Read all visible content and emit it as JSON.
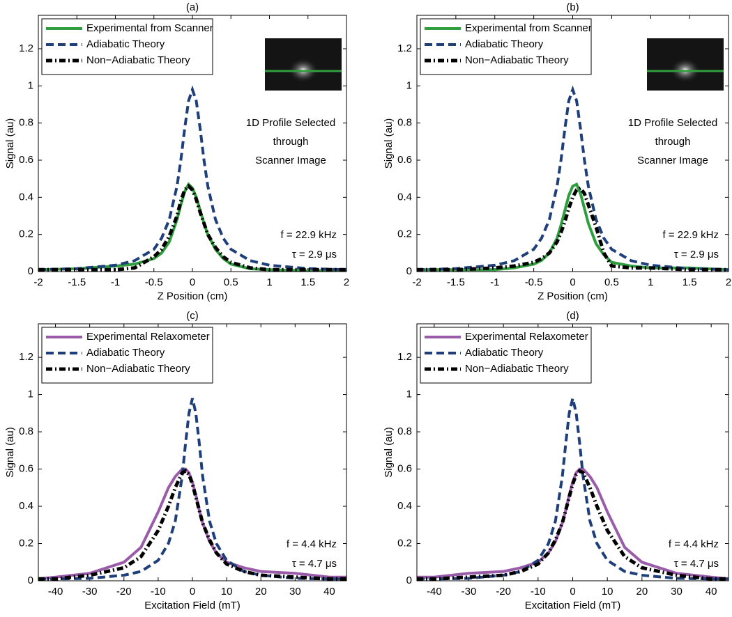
{
  "chart_data": [
    {
      "type": "line",
      "title": "(a)",
      "xlabel": "Z Position (cm)",
      "ylabel": "Signal (au)",
      "x": [
        -2,
        -1.5,
        -1,
        -0.75,
        -0.5,
        -0.4,
        -0.3,
        -0.2,
        -0.15,
        -0.1,
        -0.05,
        0,
        0.05,
        0.1,
        0.15,
        0.2,
        0.3,
        0.4,
        0.5,
        0.75,
        1,
        1.5,
        2
      ],
      "xlim": [
        -2,
        2
      ],
      "xticks": [
        -2,
        -1.5,
        -1,
        -0.5,
        0,
        0.5,
        1,
        1.5,
        2
      ],
      "ylim": [
        0,
        1.38
      ],
      "yticks": [
        0,
        0.2,
        0.4,
        0.6,
        0.8,
        1,
        1.2
      ],
      "legend": "upper left",
      "inset_image": true,
      "annotations": [
        "f = 22.9 kHz",
        "τ = 2.9 μs"
      ],
      "inset_caption": [
        "1D Profile Selected",
        "through",
        "Scanner Image"
      ],
      "series": [
        {
          "name": "Experimental from Scanner",
          "color": "#2e9e3e",
          "style": "solid",
          "values": [
            0.01,
            0.015,
            0.03,
            0.04,
            0.07,
            0.1,
            0.16,
            0.28,
            0.36,
            0.43,
            0.47,
            0.45,
            0.4,
            0.33,
            0.26,
            0.2,
            0.12,
            0.07,
            0.04,
            0.015,
            0.01,
            0.005,
            0.005
          ]
        },
        {
          "name": "Adiabatic Theory",
          "color": "#1f3f7a",
          "style": "dashed",
          "values": [
            0.01,
            0.016,
            0.034,
            0.059,
            0.12,
            0.18,
            0.28,
            0.46,
            0.6,
            0.77,
            0.92,
            0.98,
            0.92,
            0.77,
            0.6,
            0.46,
            0.28,
            0.18,
            0.12,
            0.059,
            0.034,
            0.016,
            0.01
          ]
        },
        {
          "name": "Non−Adiabatic Theory",
          "color": "#000000",
          "style": "dashdot",
          "values": [
            0.01,
            0.01,
            0.01,
            0.02,
            0.08,
            0.12,
            0.19,
            0.3,
            0.38,
            0.44,
            0.46,
            0.44,
            0.39,
            0.32,
            0.26,
            0.2,
            0.13,
            0.08,
            0.05,
            0.02,
            0.01,
            0.01,
            0.01
          ]
        }
      ]
    },
    {
      "type": "line",
      "title": "(b)",
      "xlabel": "Z Position (cm)",
      "ylabel": "Signal (au)",
      "x": [
        -2,
        -1.5,
        -1,
        -0.75,
        -0.5,
        -0.4,
        -0.3,
        -0.2,
        -0.15,
        -0.1,
        -0.05,
        0,
        0.05,
        0.1,
        0.15,
        0.2,
        0.3,
        0.4,
        0.5,
        0.75,
        1,
        1.5,
        2
      ],
      "xlim": [
        -2,
        2
      ],
      "xticks": [
        -2,
        -1.5,
        -1,
        -0.5,
        0,
        0.5,
        1,
        1.5,
        2
      ],
      "ylim": [
        0,
        1.38
      ],
      "yticks": [
        0,
        0.2,
        0.4,
        0.6,
        0.8,
        1,
        1.2
      ],
      "legend": "upper left",
      "inset_image": true,
      "annotations": [
        "f = 22.9 kHz",
        "τ = 2.9 μs"
      ],
      "inset_caption": [
        "1D Profile Selected",
        "through",
        "Scanner Image"
      ],
      "series": [
        {
          "name": "Experimental from Scanner",
          "color": "#2e9e3e",
          "style": "solid",
          "values": [
            0.01,
            0.01,
            0.01,
            0.02,
            0.04,
            0.06,
            0.1,
            0.18,
            0.25,
            0.33,
            0.41,
            0.46,
            0.47,
            0.42,
            0.34,
            0.26,
            0.15,
            0.09,
            0.05,
            0.03,
            0.02,
            0.02,
            0.01
          ]
        },
        {
          "name": "Adiabatic Theory",
          "color": "#1f3f7a",
          "style": "dashed",
          "values": [
            0.01,
            0.016,
            0.034,
            0.059,
            0.12,
            0.18,
            0.28,
            0.46,
            0.6,
            0.77,
            0.92,
            0.98,
            0.92,
            0.77,
            0.6,
            0.46,
            0.28,
            0.18,
            0.12,
            0.059,
            0.034,
            0.016,
            0.01
          ]
        },
        {
          "name": "Non−Adiabatic Theory",
          "color": "#000000",
          "style": "dashdot",
          "values": [
            0.01,
            0.01,
            0.02,
            0.03,
            0.05,
            0.07,
            0.1,
            0.16,
            0.21,
            0.27,
            0.34,
            0.4,
            0.44,
            0.45,
            0.42,
            0.36,
            0.24,
            0.1,
            0.03,
            0.02,
            0.02,
            0.01,
            0.01
          ]
        }
      ]
    },
    {
      "type": "line",
      "title": "(c)",
      "xlabel": "Excitation Field (mT)",
      "ylabel": "Signal (au)",
      "x": [
        -45,
        -40,
        -30,
        -20,
        -15,
        -10,
        -7,
        -5,
        -3,
        -2,
        -1,
        0,
        1,
        2,
        3,
        5,
        7,
        10,
        15,
        20,
        30,
        40,
        45
      ],
      "xlim": [
        -45,
        45
      ],
      "xticks": [
        -40,
        -30,
        -20,
        -10,
        0,
        10,
        20,
        30,
        40
      ],
      "ylim": [
        0,
        1.38
      ],
      "yticks": [
        0,
        0.2,
        0.4,
        0.6,
        0.8,
        1,
        1.2
      ],
      "legend": "upper left",
      "inset_image": false,
      "annotations": [
        "f = 4.4 kHz",
        "τ = 4.7 μs"
      ],
      "series": [
        {
          "name": "Experimental Relaxometer",
          "color": "#9a5ca8",
          "style": "solid",
          "values": [
            0.01,
            0.02,
            0.04,
            0.1,
            0.18,
            0.37,
            0.5,
            0.56,
            0.6,
            0.6,
            0.58,
            0.53,
            0.46,
            0.38,
            0.31,
            0.21,
            0.15,
            0.1,
            0.07,
            0.05,
            0.04,
            0.02,
            0.02
          ]
        },
        {
          "name": "Adiabatic Theory",
          "color": "#1f3f7a",
          "style": "dashed",
          "values": [
            0.01,
            0.01,
            0.013,
            0.03,
            0.05,
            0.11,
            0.2,
            0.32,
            0.56,
            0.74,
            0.9,
            0.98,
            0.9,
            0.74,
            0.56,
            0.32,
            0.2,
            0.11,
            0.05,
            0.03,
            0.013,
            0.01,
            0.01
          ]
        },
        {
          "name": "Non−Adiabatic Theory",
          "color": "#000000",
          "style": "dashdot",
          "values": [
            0.01,
            0.01,
            0.03,
            0.07,
            0.13,
            0.27,
            0.4,
            0.5,
            0.58,
            0.59,
            0.57,
            0.52,
            0.45,
            0.38,
            0.31,
            0.22,
            0.15,
            0.09,
            0.05,
            0.03,
            0.02,
            0.01,
            0.01
          ]
        }
      ]
    },
    {
      "type": "line",
      "title": "(d)",
      "xlabel": "Excitation Field (mT)",
      "ylabel": "Signal (au)",
      "x": [
        -45,
        -40,
        -30,
        -20,
        -15,
        -10,
        -7,
        -5,
        -3,
        -2,
        -1,
        0,
        1,
        2,
        3,
        5,
        7,
        10,
        15,
        20,
        30,
        40,
        45
      ],
      "xlim": [
        -45,
        45
      ],
      "xticks": [
        -40,
        -30,
        -20,
        -10,
        0,
        10,
        20,
        30,
        40
      ],
      "ylim": [
        0,
        1.38
      ],
      "yticks": [
        0,
        0.2,
        0.4,
        0.6,
        0.8,
        1,
        1.2
      ],
      "legend": "upper left",
      "inset_image": false,
      "annotations": [
        "f = 4.4 kHz",
        "τ = 4.7 μs"
      ],
      "series": [
        {
          "name": "Experimental Relaxometer",
          "color": "#9a5ca8",
          "style": "solid",
          "values": [
            0.02,
            0.02,
            0.04,
            0.05,
            0.07,
            0.1,
            0.15,
            0.21,
            0.31,
            0.38,
            0.46,
            0.53,
            0.58,
            0.6,
            0.6,
            0.56,
            0.5,
            0.37,
            0.18,
            0.1,
            0.04,
            0.02,
            0.01
          ]
        },
        {
          "name": "Adiabatic Theory",
          "color": "#1f3f7a",
          "style": "dashed",
          "values": [
            0.01,
            0.01,
            0.013,
            0.03,
            0.05,
            0.11,
            0.2,
            0.32,
            0.56,
            0.74,
            0.9,
            0.98,
            0.9,
            0.74,
            0.56,
            0.32,
            0.2,
            0.11,
            0.05,
            0.03,
            0.013,
            0.01,
            0.01
          ]
        },
        {
          "name": "Non−Adiabatic Theory",
          "color": "#000000",
          "style": "dashdot",
          "values": [
            0.01,
            0.01,
            0.02,
            0.03,
            0.05,
            0.09,
            0.15,
            0.22,
            0.31,
            0.38,
            0.45,
            0.52,
            0.57,
            0.59,
            0.58,
            0.5,
            0.4,
            0.27,
            0.13,
            0.07,
            0.03,
            0.01,
            0.01
          ]
        }
      ]
    }
  ]
}
